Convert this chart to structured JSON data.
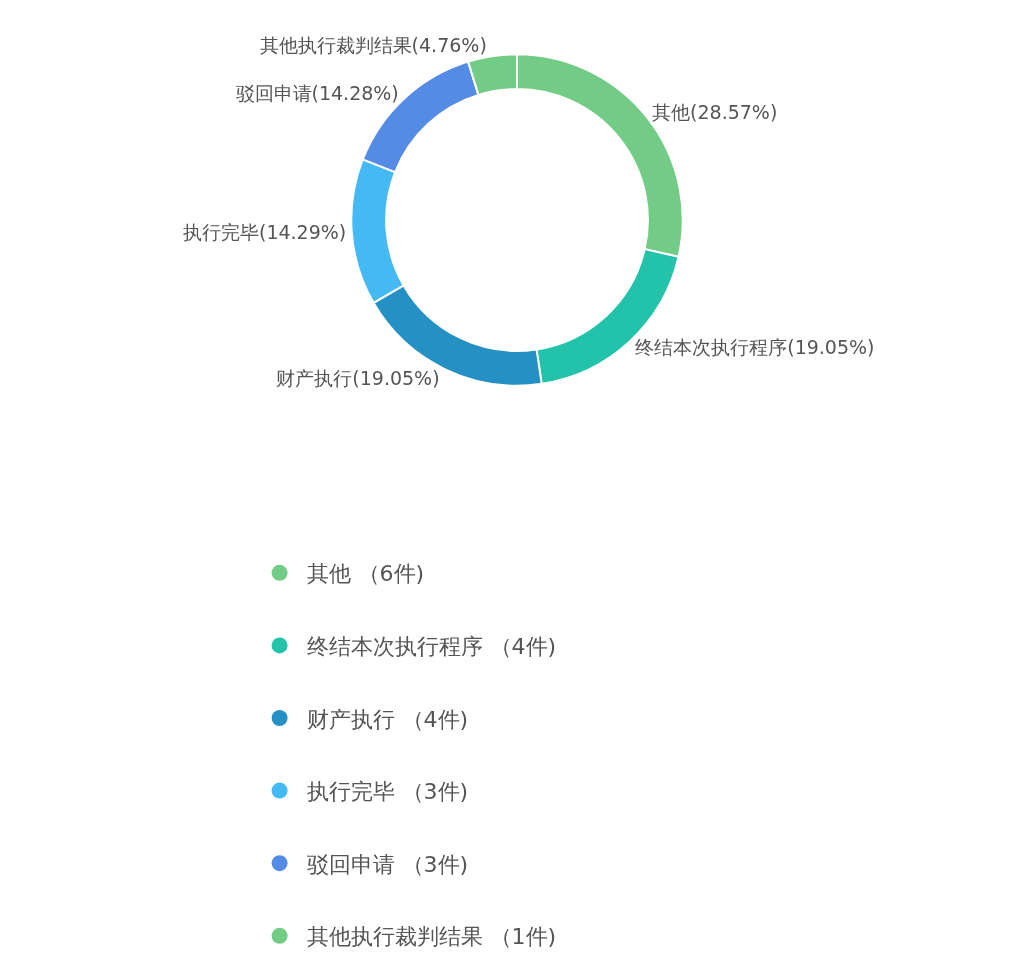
{
  "chart_data": {
    "type": "donut",
    "categories": [
      "其他 （6件)",
      "终结本次执行程序 （4件)",
      "财产执行 （4件)",
      "执行完毕 （3件)",
      "驳回申请 （3件)",
      "其他执行裁判结果 （1件)"
    ],
    "values": [
      6,
      4,
      4,
      3,
      3,
      1
    ],
    "value_labels": [
      "其他(28.57%)",
      "终结本次执行程序(19.05%)",
      "财产执行(19.05%)",
      "执行完毕(14.29%)",
      "驳回申请(14.28%)",
      "其他执行裁判结果(4.76%)"
    ],
    "colors": [
      "#73cc85",
      "#22c3aa",
      "#2490c4",
      "#45b9f4",
      "#548be4",
      "#73cc85"
    ],
    "legend": "bottom",
    "marker": "circle"
  }
}
